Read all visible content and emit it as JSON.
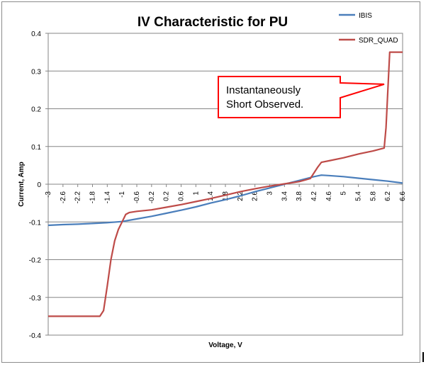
{
  "chart_data": {
    "type": "line",
    "title": "IV Characteristic for PU",
    "xlabel": "Voltage, V",
    "ylabel": "Current,  Amp",
    "xlim": [
      -3,
      6.6
    ],
    "ylim": [
      -0.4,
      0.4
    ],
    "yticks": [
      -0.4,
      -0.3,
      -0.2,
      -0.1,
      0,
      0.1,
      0.2,
      0.3,
      0.4
    ],
    "ytick_labels": [
      "-0.4",
      "-0.3",
      "-0.2",
      "-0.1",
      "0",
      "0.1",
      "0.2",
      "0.3",
      "0.4"
    ],
    "xticks": [
      -3,
      -2.6,
      -2.2,
      -1.8,
      -1.4,
      -1,
      -0.6,
      -0.2,
      0.2,
      0.6,
      1,
      1.4,
      1.8,
      2.2,
      2.6,
      3,
      3.4,
      3.8,
      4.2,
      4.6,
      5,
      5.4,
      5.8,
      6.2,
      6.6
    ],
    "xtick_labels": [
      "-3",
      "-2.6",
      "-2.2",
      "-1.8",
      "-1.4",
      "-1",
      "-0.6",
      "-0.2",
      "0.2",
      "0.6",
      "1",
      "1.4",
      "1.8",
      "2.2",
      "2.6",
      "3",
      "3.4",
      "3.8",
      "4.2",
      "4.6",
      "5",
      "5.4",
      "5.8",
      "6.2",
      "6.6"
    ],
    "grid": "horizontal",
    "legend_position": "top-right",
    "series": [
      {
        "name": "IBIS",
        "color": "#4a7ebb",
        "x": [
          -3,
          -2.6,
          -2.2,
          -1.8,
          -1.4,
          -1,
          -0.6,
          -0.2,
          0.2,
          0.6,
          1,
          1.4,
          1.8,
          2.2,
          2.6,
          3,
          3.4,
          3.8,
          4.2,
          4.4,
          4.6,
          5,
          5.4,
          5.8,
          6.2,
          6.6
        ],
        "y": [
          -0.109,
          -0.107,
          -0.106,
          -0.104,
          -0.102,
          -0.099,
          -0.092,
          -0.085,
          -0.077,
          -0.069,
          -0.06,
          -0.05,
          -0.041,
          -0.031,
          -0.02,
          -0.01,
          0,
          0.01,
          0.02,
          0.024,
          0.023,
          0.02,
          0.016,
          0.012,
          0.008,
          0.003
        ]
      },
      {
        "name": "SDR_QUAD",
        "color": "#be4b48",
        "x": [
          -3,
          -2.6,
          -2.2,
          -1.8,
          -1.6,
          -1.5,
          -1.4,
          -1.3,
          -1.2,
          -1.1,
          -1,
          -0.9,
          -0.8,
          -0.6,
          -0.2,
          0.2,
          0.6,
          1,
          1.4,
          1.8,
          2.2,
          2.6,
          3,
          3.4,
          3.8,
          4.1,
          4.2,
          4.3,
          4.4,
          4.6,
          5,
          5.4,
          5.8,
          6.1,
          6.15,
          6.25,
          6.6
        ],
        "y": [
          -0.35,
          -0.35,
          -0.35,
          -0.35,
          -0.35,
          -0.335,
          -0.27,
          -0.2,
          -0.15,
          -0.12,
          -0.1,
          -0.08,
          -0.075,
          -0.072,
          -0.068,
          -0.061,
          -0.054,
          -0.046,
          -0.038,
          -0.029,
          -0.02,
          -0.012,
          -0.005,
          0.001,
          0.007,
          0.015,
          0.03,
          0.045,
          0.058,
          0.062,
          0.07,
          0.08,
          0.088,
          0.096,
          0.15,
          0.35,
          0.35
        ]
      }
    ],
    "annotations": [
      {
        "text_lines": [
          "Instantaneously",
          "Short Observed."
        ],
        "points_to": [
          6.1,
          0.265
        ],
        "box_color": "#ff0000"
      }
    ]
  }
}
